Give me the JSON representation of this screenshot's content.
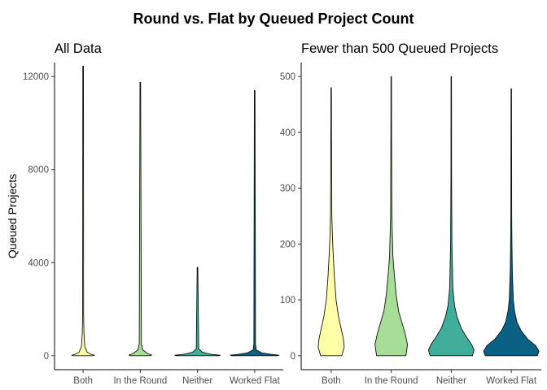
{
  "title": "Round vs. Flat by Queued Project Count",
  "chart_data": [
    {
      "type": "violin",
      "title": "All Data",
      "xlabel": "",
      "ylabel": "Queued Projects",
      "categories": [
        "Both",
        "In the Round",
        "Neither",
        "Worked Flat"
      ],
      "ylim": [
        -600,
        12600
      ],
      "yticks": [
        0,
        4000,
        8000,
        12000
      ],
      "colors": [
        "#FFFFA8",
        "#A6DD97",
        "#40AE9B",
        "#0A6183"
      ],
      "series": [
        {
          "name": "Both",
          "max": 12450,
          "profile": [
            [
              0,
              12
            ],
            [
              20,
              14
            ],
            [
              60,
              10
            ],
            [
              150,
              5
            ],
            [
              400,
              2
            ],
            [
              1000,
              1
            ],
            [
              1800,
              0.6
            ],
            [
              12450,
              0.4
            ]
          ]
        },
        {
          "name": "In the Round",
          "max": 11750,
          "profile": [
            [
              0,
              12
            ],
            [
              30,
              14
            ],
            [
              90,
              9
            ],
            [
              250,
              3
            ],
            [
              500,
              1.3
            ],
            [
              11750,
              0.4
            ]
          ]
        },
        {
          "name": "Neither",
          "max": 3800,
          "profile": [
            [
              0,
              26
            ],
            [
              20,
              28
            ],
            [
              60,
              17
            ],
            [
              150,
              6
            ],
            [
              300,
              1.5
            ],
            [
              3800,
              0.4
            ]
          ]
        },
        {
          "name": "Worked Flat",
          "max": 11400,
          "profile": [
            [
              0,
              28
            ],
            [
              20,
              30
            ],
            [
              60,
              20
            ],
            [
              120,
              9
            ],
            [
              250,
              2
            ],
            [
              500,
              1
            ],
            [
              11400,
              0.4
            ]
          ]
        }
      ]
    },
    {
      "type": "violin",
      "title": "Fewer than 500 Queued Projects",
      "xlabel": "",
      "ylabel": "",
      "categories": [
        "Both",
        "In the Round",
        "Neither",
        "Worked Flat"
      ],
      "ylim": [
        -25,
        525
      ],
      "yticks": [
        0,
        100,
        200,
        300,
        400,
        500
      ],
      "colors": [
        "#FFFFA8",
        "#A6DD97",
        "#40AE9B",
        "#0A6183"
      ],
      "series": [
        {
          "name": "Both",
          "max": 480,
          "profile": [
            [
              0,
              13
            ],
            [
              15,
              16
            ],
            [
              30,
              15
            ],
            [
              50,
              12
            ],
            [
              70,
              9
            ],
            [
              100,
              6
            ],
            [
              140,
              4
            ],
            [
              180,
              2.5
            ],
            [
              210,
              1.6
            ],
            [
              250,
              0.8
            ],
            [
              350,
              0.5
            ],
            [
              400,
              0.4
            ],
            [
              480,
              0.3
            ]
          ]
        },
        {
          "name": "In the Round",
          "max": 500,
          "profile": [
            [
              0,
              18
            ],
            [
              20,
              20
            ],
            [
              40,
              17
            ],
            [
              60,
              13
            ],
            [
              80,
              9
            ],
            [
              110,
              6
            ],
            [
              150,
              3.5
            ],
            [
              180,
              2
            ],
            [
              250,
              0.8
            ],
            [
              400,
              0.4
            ],
            [
              500,
              0.3
            ]
          ]
        },
        {
          "name": "Neither",
          "max": 500,
          "profile": [
            [
              0,
              26
            ],
            [
              10,
              28
            ],
            [
              20,
              25
            ],
            [
              35,
              18
            ],
            [
              50,
              12
            ],
            [
              70,
              7
            ],
            [
              90,
              4
            ],
            [
              120,
              2
            ],
            [
              200,
              0.8
            ],
            [
              320,
              0.4
            ],
            [
              500,
              0.3
            ]
          ]
        },
        {
          "name": "Worked Flat",
          "max": 478,
          "profile": [
            [
              0,
              32
            ],
            [
              8,
              34
            ],
            [
              18,
              30
            ],
            [
              30,
              20
            ],
            [
              45,
              12
            ],
            [
              60,
              7
            ],
            [
              80,
              4
            ],
            [
              100,
              2.5
            ],
            [
              150,
              1.3
            ],
            [
              200,
              0.8
            ],
            [
              250,
              0.5
            ],
            [
              478,
              0.3
            ]
          ]
        }
      ]
    }
  ]
}
